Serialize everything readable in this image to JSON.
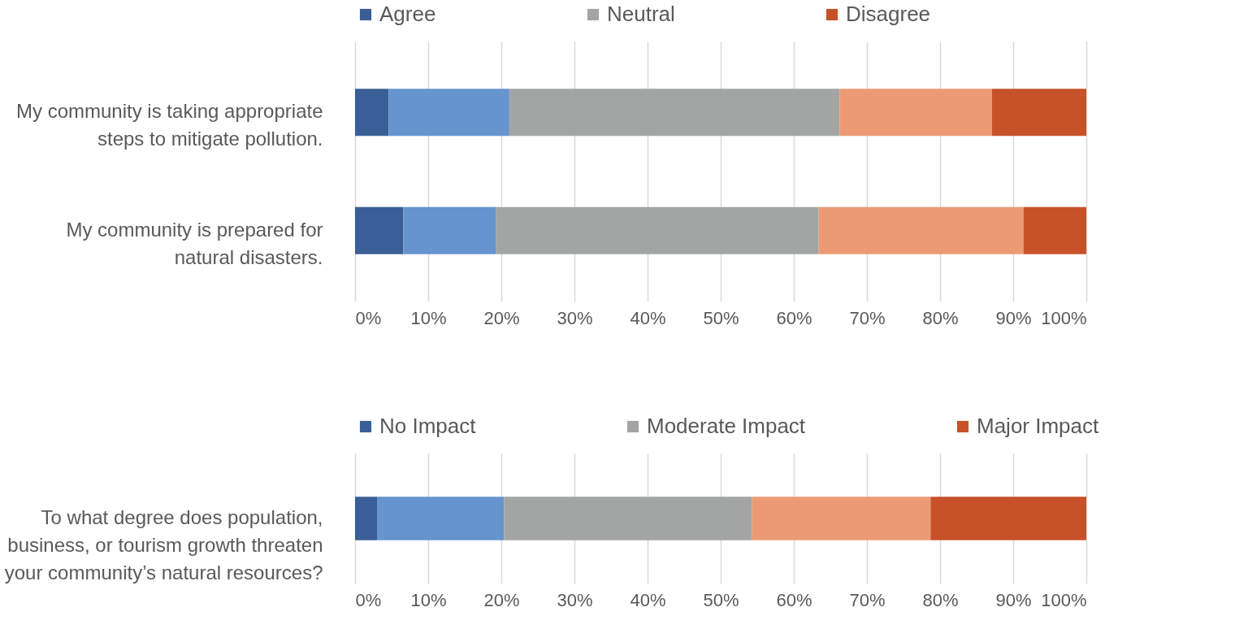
{
  "chart_data": [
    {
      "type": "bar",
      "orientation": "horizontal",
      "stacked": true,
      "categories": [
        "My community is taking appropriate\nsteps to mitigate pollution.",
        "My community is prepared for\nnatural disasters."
      ],
      "series": [
        {
          "name": "Agree",
          "color": "#3a5f96",
          "values": [
            4.6,
            6.6
          ]
        },
        {
          "color": "#6594cf",
          "values": [
            16.5,
            12.7
          ]
        },
        {
          "name": "Neutral",
          "color": "#a3a5a4",
          "values": [
            45.2,
            44.1
          ]
        },
        {
          "color": "#ec9a73",
          "values": [
            20.8,
            28
          ]
        },
        {
          "name": "Disagree",
          "color": "#c75229",
          "values": [
            12.9,
            8.6
          ]
        }
      ],
      "xlim": [
        0,
        100
      ],
      "xticks": [
        {
          "value": 0,
          "label": "0%"
        },
        {
          "value": 10,
          "label": "10%"
        },
        {
          "value": 20,
          "label": "20%"
        },
        {
          "value": 30,
          "label": "30%"
        },
        {
          "value": 40,
          "label": "40%"
        },
        {
          "value": 50,
          "label": "50%"
        },
        {
          "value": 60,
          "label": "60%"
        },
        {
          "value": 70,
          "label": "70%"
        },
        {
          "value": 80,
          "label": "80%"
        },
        {
          "value": 90,
          "label": "90%"
        },
        {
          "value": 100,
          "label": "100%"
        }
      ],
      "grid": "x",
      "legend": "top"
    },
    {
      "type": "bar",
      "orientation": "horizontal",
      "stacked": true,
      "categories": [
        "To what degree does population,\nbusiness, or tourism growth threaten\nyour community’s natural resources?"
      ],
      "series": [
        {
          "name": "No Impact",
          "color": "#3a5f96",
          "values": [
            3
          ]
        },
        {
          "color": "#6594cf",
          "values": [
            17.4
          ]
        },
        {
          "name": "Moderate Impact",
          "color": "#a3a5a4",
          "values": [
            33.9
          ]
        },
        {
          "color": "#ec9a73",
          "values": [
            24.4
          ]
        },
        {
          "name": "Major Impact",
          "color": "#c75229",
          "values": [
            21.3
          ]
        }
      ],
      "xlim": [
        0,
        100
      ],
      "xticks": [
        {
          "value": 0,
          "label": "0%"
        },
        {
          "value": 10,
          "label": "10%"
        },
        {
          "value": 20,
          "label": "20%"
        },
        {
          "value": 30,
          "label": "30%"
        },
        {
          "value": 40,
          "label": "40%"
        },
        {
          "value": 50,
          "label": "50%"
        },
        {
          "value": 60,
          "label": "60%"
        },
        {
          "value": 70,
          "label": "70%"
        },
        {
          "value": 80,
          "label": "80%"
        },
        {
          "value": 90,
          "label": "90%"
        },
        {
          "value": 100,
          "label": "100%"
        }
      ],
      "grid": "x",
      "legend": "top"
    }
  ]
}
